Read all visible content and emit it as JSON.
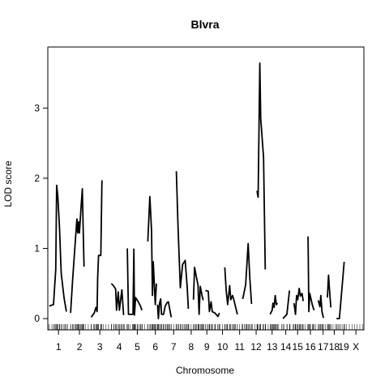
{
  "chart_data": {
    "type": "line",
    "title": "Blvra",
    "xlabel": "Chromosome",
    "ylabel": "LOD score",
    "ylim": [
      -0.16,
      3.87
    ],
    "y_ticks": [
      0,
      1,
      2,
      3
    ],
    "grid": false,
    "legend": "none",
    "line_color": "#000000",
    "chromosomes": [
      {
        "label": "1",
        "start": 0.0,
        "end": 6.5
      },
      {
        "label": "2",
        "start": 7.5,
        "end": 13.7
      },
      {
        "label": "3",
        "start": 14.7,
        "end": 20.8
      },
      {
        "label": "4",
        "start": 21.8,
        "end": 27.3
      },
      {
        "label": "5",
        "start": 28.3,
        "end": 33.5
      },
      {
        "label": "6",
        "start": 34.5,
        "end": 40.0
      },
      {
        "label": "7",
        "start": 41.0,
        "end": 46.3
      },
      {
        "label": "8",
        "start": 47.3,
        "end": 52.3
      },
      {
        "label": "9",
        "start": 53.3,
        "end": 57.3
      },
      {
        "label": "10",
        "start": 58.3,
        "end": 63.3
      },
      {
        "label": "11",
        "start": 64.3,
        "end": 69.3
      },
      {
        "label": "12",
        "start": 70.3,
        "end": 74.9
      },
      {
        "label": "13",
        "start": 75.9,
        "end": 80.5
      },
      {
        "label": "14",
        "start": 81.5,
        "end": 84.5
      },
      {
        "label": "15",
        "start": 85.5,
        "end": 88.8
      },
      {
        "label": "16",
        "start": 89.8,
        "end": 93.5
      },
      {
        "label": "17",
        "start": 94.5,
        "end": 97.7
      },
      {
        "label": "18",
        "start": 98.7,
        "end": 101.3
      },
      {
        "label": "19",
        "start": 102.3,
        "end": 104.3
      },
      {
        "label": "X",
        "start": 105.3,
        "end": 109.9
      }
    ],
    "series": [
      {
        "values": [
          [
            0.0,
            0.18
          ],
          [
            1.5,
            0.2
          ],
          [
            2.3,
            0.7
          ],
          [
            2.6,
            1.9
          ],
          [
            3.0,
            1.75
          ],
          [
            3.6,
            1.3
          ],
          [
            4.2,
            0.65
          ],
          [
            5.2,
            0.3
          ],
          [
            6.0,
            0.1
          ]
        ]
      },
      {
        "values": [
          [
            7.5,
            0.08
          ],
          [
            8.2,
            0.55
          ],
          [
            9.1,
            1.08
          ],
          [
            9.7,
            1.42
          ],
          [
            10.0,
            1.22
          ],
          [
            10.3,
            1.38
          ],
          [
            10.6,
            1.22
          ],
          [
            11.2,
            1.6
          ],
          [
            11.6,
            1.85
          ],
          [
            11.9,
            1.3
          ],
          [
            12.2,
            0.74
          ]
        ]
      },
      {
        "values": [
          [
            14.7,
            0.02
          ],
          [
            15.8,
            0.08
          ],
          [
            16.4,
            0.16
          ],
          [
            16.8,
            0.1
          ],
          [
            17.0,
            0.58
          ],
          [
            17.3,
            0.9
          ],
          [
            18.1,
            0.9
          ],
          [
            18.5,
            1.97
          ]
        ]
      },
      {
        "values": [
          [
            21.8,
            0.5
          ],
          [
            22.7,
            0.46
          ],
          [
            23.3,
            0.42
          ],
          [
            23.6,
            0.12
          ],
          [
            24.2,
            0.38
          ],
          [
            24.6,
            0.12
          ],
          [
            25.1,
            0.28
          ],
          [
            25.5,
            0.41
          ],
          [
            26.1,
            0.05
          ]
        ]
      },
      {
        "values": [
          [
            27.4,
            1.0
          ],
          [
            27.8,
            0.06
          ],
          [
            29.4,
            0.06
          ],
          [
            29.7,
            0.99
          ],
          [
            29.9,
            0.05
          ],
          [
            30.3,
            0.3
          ],
          [
            31.1,
            0.25
          ],
          [
            32.0,
            0.18
          ],
          [
            32.5,
            0.12
          ]
        ]
      },
      {
        "values": [
          [
            34.6,
            1.1
          ],
          [
            35.3,
            1.74
          ],
          [
            35.9,
            1.25
          ],
          [
            36.2,
            0.33
          ],
          [
            36.5,
            0.81
          ],
          [
            36.9,
            0.47
          ],
          [
            37.2,
            0.2
          ],
          [
            37.6,
            0.5
          ]
        ]
      },
      {
        "values": [
          [
            38.0,
            0.2
          ],
          [
            38.3,
            0.0
          ],
          [
            38.7,
            0.22
          ],
          [
            39.1,
            0.28
          ],
          [
            39.4,
            0.06
          ],
          [
            40.1,
            0.06
          ],
          [
            40.7,
            0.18
          ],
          [
            41.4,
            0.23
          ],
          [
            41.8,
            0.24
          ],
          [
            42.3,
            0.13
          ],
          [
            42.8,
            0.02
          ]
        ]
      },
      {
        "values": [
          [
            44.6,
            2.1
          ],
          [
            45.2,
            1.3
          ],
          [
            46.0,
            0.44
          ],
          [
            46.8,
            0.77
          ],
          [
            47.7,
            0.83
          ],
          [
            48.4,
            0.45
          ],
          [
            48.8,
            0.14
          ]
        ]
      },
      {
        "values": [
          [
            50.6,
            0.27
          ],
          [
            51.0,
            0.73
          ],
          [
            51.6,
            0.6
          ],
          [
            52.2,
            0.48
          ],
          [
            52.6,
            0.06
          ],
          [
            53.0,
            0.46
          ],
          [
            53.6,
            0.33
          ],
          [
            54.0,
            0.26
          ]
        ]
      },
      {
        "values": [
          [
            54.8,
            0.4
          ],
          [
            55.8,
            0.39
          ],
          [
            56.2,
            0.1
          ],
          [
            56.8,
            0.24
          ],
          [
            57.2,
            0.1
          ],
          [
            58.1,
            0.08
          ],
          [
            59.2,
            0.03
          ],
          [
            59.7,
            0.08
          ]
        ]
      },
      {
        "values": [
          [
            61.6,
            0.73
          ],
          [
            62.1,
            0.4
          ],
          [
            62.6,
            0.2
          ],
          [
            63.3,
            0.47
          ],
          [
            63.7,
            0.27
          ],
          [
            64.3,
            0.33
          ],
          [
            64.7,
            0.28
          ],
          [
            65.3,
            0.18
          ],
          [
            66.0,
            0.06
          ]
        ]
      },
      {
        "values": [
          [
            67.9,
            0.28
          ],
          [
            68.9,
            0.48
          ],
          [
            69.4,
            0.8
          ],
          [
            69.8,
            1.07
          ],
          [
            70.4,
            0.57
          ],
          [
            71.0,
            0.21
          ]
        ]
      },
      {
        "values": [
          [
            72.9,
            1.82
          ],
          [
            73.3,
            1.73
          ],
          [
            73.9,
            3.64
          ],
          [
            74.2,
            2.85
          ],
          [
            75.2,
            2.3
          ],
          [
            75.8,
            0.7
          ]
        ]
      },
      {
        "values": [
          [
            77.5,
            0.06
          ],
          [
            78.2,
            0.12
          ],
          [
            78.5,
            0.22
          ],
          [
            78.9,
            0.16
          ],
          [
            79.3,
            0.33
          ],
          [
            79.7,
            0.2
          ],
          [
            80.1,
            0.22
          ]
        ]
      },
      {
        "values": [
          [
            82.0,
            0.0
          ],
          [
            83.4,
            0.06
          ],
          [
            84.3,
            0.4
          ]
        ]
      },
      {
        "values": [
          [
            85.9,
            0.22
          ],
          [
            86.4,
            0.06
          ],
          [
            86.8,
            0.33
          ],
          [
            87.2,
            0.27
          ],
          [
            87.7,
            0.43
          ],
          [
            88.1,
            0.32
          ],
          [
            88.7,
            0.36
          ],
          [
            89.1,
            0.25
          ]
        ]
      },
      {
        "values": [
          [
            90.8,
            1.17
          ],
          [
            91.1,
            0.1
          ],
          [
            91.4,
            0.36
          ],
          [
            92.3,
            0.2
          ],
          [
            92.9,
            0.12
          ]
        ]
      },
      {
        "values": [
          [
            94.4,
            0.26
          ],
          [
            95.0,
            0.17
          ],
          [
            95.3,
            0.33
          ],
          [
            95.7,
            0.1
          ],
          [
            96.2,
            0.01
          ]
        ]
      },
      {
        "values": [
          [
            97.6,
            0.3
          ],
          [
            98.0,
            0.62
          ],
          [
            98.3,
            0.44
          ],
          [
            98.8,
            0.16
          ]
        ]
      },
      {
        "values": [
          [
            100.8,
            0.0
          ],
          [
            101.8,
            0.0
          ],
          [
            103.5,
            0.81
          ]
        ]
      }
    ]
  }
}
